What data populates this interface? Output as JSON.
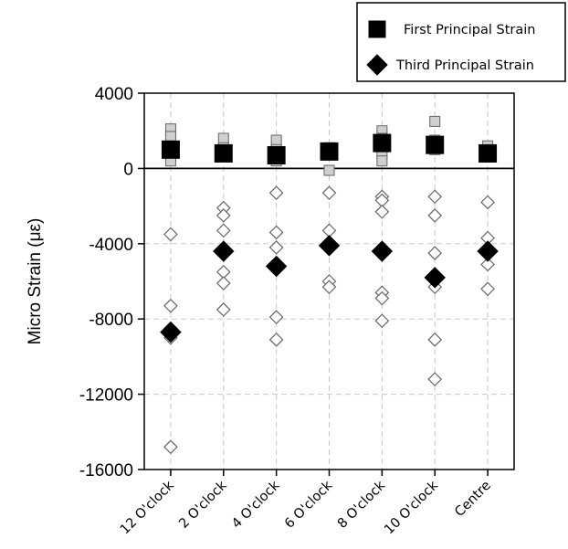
{
  "chart_data": {
    "type": "scatter",
    "ylabel": "Micro Strain (με)",
    "xlabel": "",
    "ylim": [
      -16000,
      4000
    ],
    "yticks": [
      4000,
      0,
      -4000,
      -8000,
      -12000,
      -16000
    ],
    "categories": [
      "12 O'clock",
      "2 O'clock",
      "4 O'clock",
      "6 O'clock",
      "8 O'clock",
      "10 O'clock",
      "Centre"
    ],
    "grid": true,
    "legend_position": "top-right",
    "legend": [
      {
        "name": "First Principal Strain",
        "marker": "square"
      },
      {
        "name": "Third Principal Strain",
        "marker": "diamond"
      }
    ],
    "series": [
      {
        "name": "First Principal Strain",
        "marker": "square",
        "color": "#000000",
        "values": [
          1000,
          800,
          700,
          900,
          1350,
          1250,
          800
        ]
      },
      {
        "name": "Third Principal Strain",
        "marker": "diamond",
        "color": "#000000",
        "values": [
          -8700,
          -4400,
          -5200,
          -4100,
          -4400,
          -5800,
          -4400
        ]
      }
    ],
    "individual_first": [
      {
        "category": "12 O'clock",
        "values": [
          2100,
          1700,
          1200,
          700,
          400
        ]
      },
      {
        "category": "2 O'clock",
        "values": [
          1600,
          1100,
          800
        ]
      },
      {
        "category": "4 O'clock",
        "values": [
          1500,
          1000,
          400
        ]
      },
      {
        "category": "6 O'clock",
        "values": [
          1100,
          800,
          -100
        ]
      },
      {
        "category": "8 O'clock",
        "values": [
          2000,
          1600,
          800,
          400
        ]
      },
      {
        "category": "10 O'clock",
        "values": [
          2500,
          1500,
          1000
        ]
      },
      {
        "category": "Centre",
        "values": [
          1200,
          900,
          600
        ]
      }
    ],
    "individual_third": [
      {
        "category": "12 O'clock",
        "values": [
          -3500,
          -7300,
          -8500,
          -9000,
          -14800
        ]
      },
      {
        "category": "2 O'clock",
        "values": [
          -2100,
          -2500,
          -3300,
          -5500,
          -6100,
          -7500
        ]
      },
      {
        "category": "4 O'clock",
        "values": [
          -1300,
          -3400,
          -4200,
          -7900,
          -9100
        ]
      },
      {
        "category": "6 O'clock",
        "values": [
          -1300,
          -3300,
          -6000,
          -6300
        ]
      },
      {
        "category": "8 O'clock",
        "values": [
          -1500,
          -1700,
          -2300,
          -6600,
          -6900,
          -8100
        ]
      },
      {
        "category": "10 O'clock",
        "values": [
          -1500,
          -2500,
          -4500,
          -6300,
          -9100,
          -11200
        ]
      },
      {
        "category": "Centre",
        "values": [
          -1800,
          -3700,
          -5100,
          -6400
        ]
      }
    ],
    "colors": {
      "mean_fill": "#000000",
      "individual_fill": "#cfcfcf",
      "individual_stroke": "#666666",
      "grid": "#c8c8c8"
    }
  }
}
